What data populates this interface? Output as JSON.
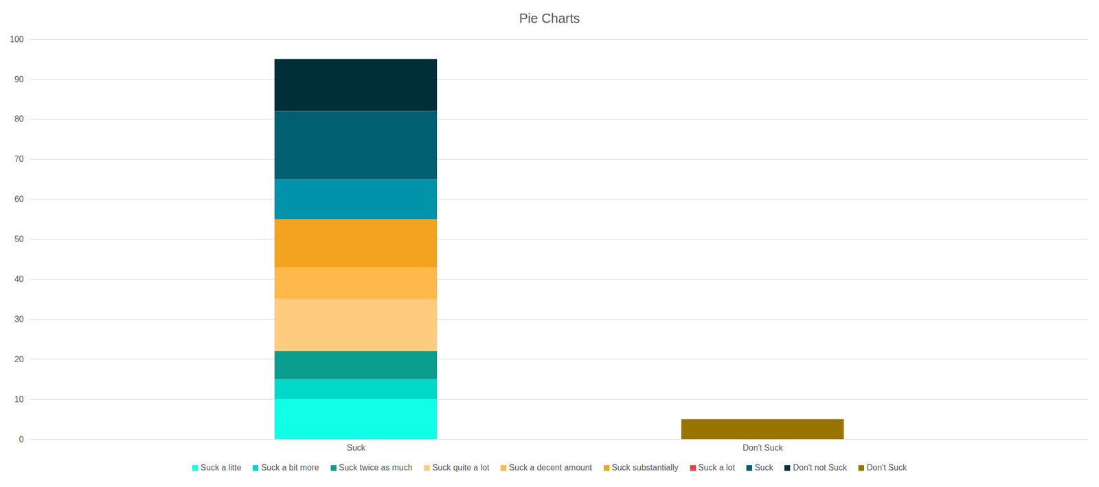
{
  "chart_data": {
    "type": "bar",
    "title": "Pie Charts",
    "categories": [
      "Suck",
      "Don't Suck"
    ],
    "stacked": true,
    "grid": true,
    "legend": "bottom",
    "ylim": [
      0,
      100
    ],
    "yticks": [
      0,
      10,
      20,
      30,
      40,
      50,
      60,
      70,
      80,
      90,
      100
    ],
    "series": [
      {
        "name": "Suck a litte",
        "color": "#10ffe6",
        "values": [
          10,
          0
        ]
      },
      {
        "name": "Suck a bit more",
        "color": "#00d8c8",
        "values": [
          5,
          0
        ]
      },
      {
        "name": "Suck twice as much",
        "color": "#0a9e8f",
        "values": [
          7,
          0
        ]
      },
      {
        "name": "Suck quite a lot",
        "color": "#ffcc7f",
        "values": [
          13,
          0
        ]
      },
      {
        "name": "Suck a decent amount",
        "color": "#ffb94a",
        "values": [
          8,
          0
        ]
      },
      {
        "name": "Suck substantially",
        "color": "#f2a420",
        "values": [
          12,
          0
        ]
      },
      {
        "name": "Suck a lot",
        "color": "#f03c3c",
        "colors": [
          "#0093aa",
          "#0093aa"
        ],
        "values": [
          10,
          0
        ]
      },
      {
        "name": "Suck",
        "color": "#006070",
        "values": [
          17,
          0
        ]
      },
      {
        "name": "Don't not Suck",
        "color": "#002f37",
        "values": [
          13,
          0
        ]
      },
      {
        "name": "Don't Suck",
        "color": "#9a7400",
        "values": [
          0,
          5
        ]
      }
    ]
  }
}
